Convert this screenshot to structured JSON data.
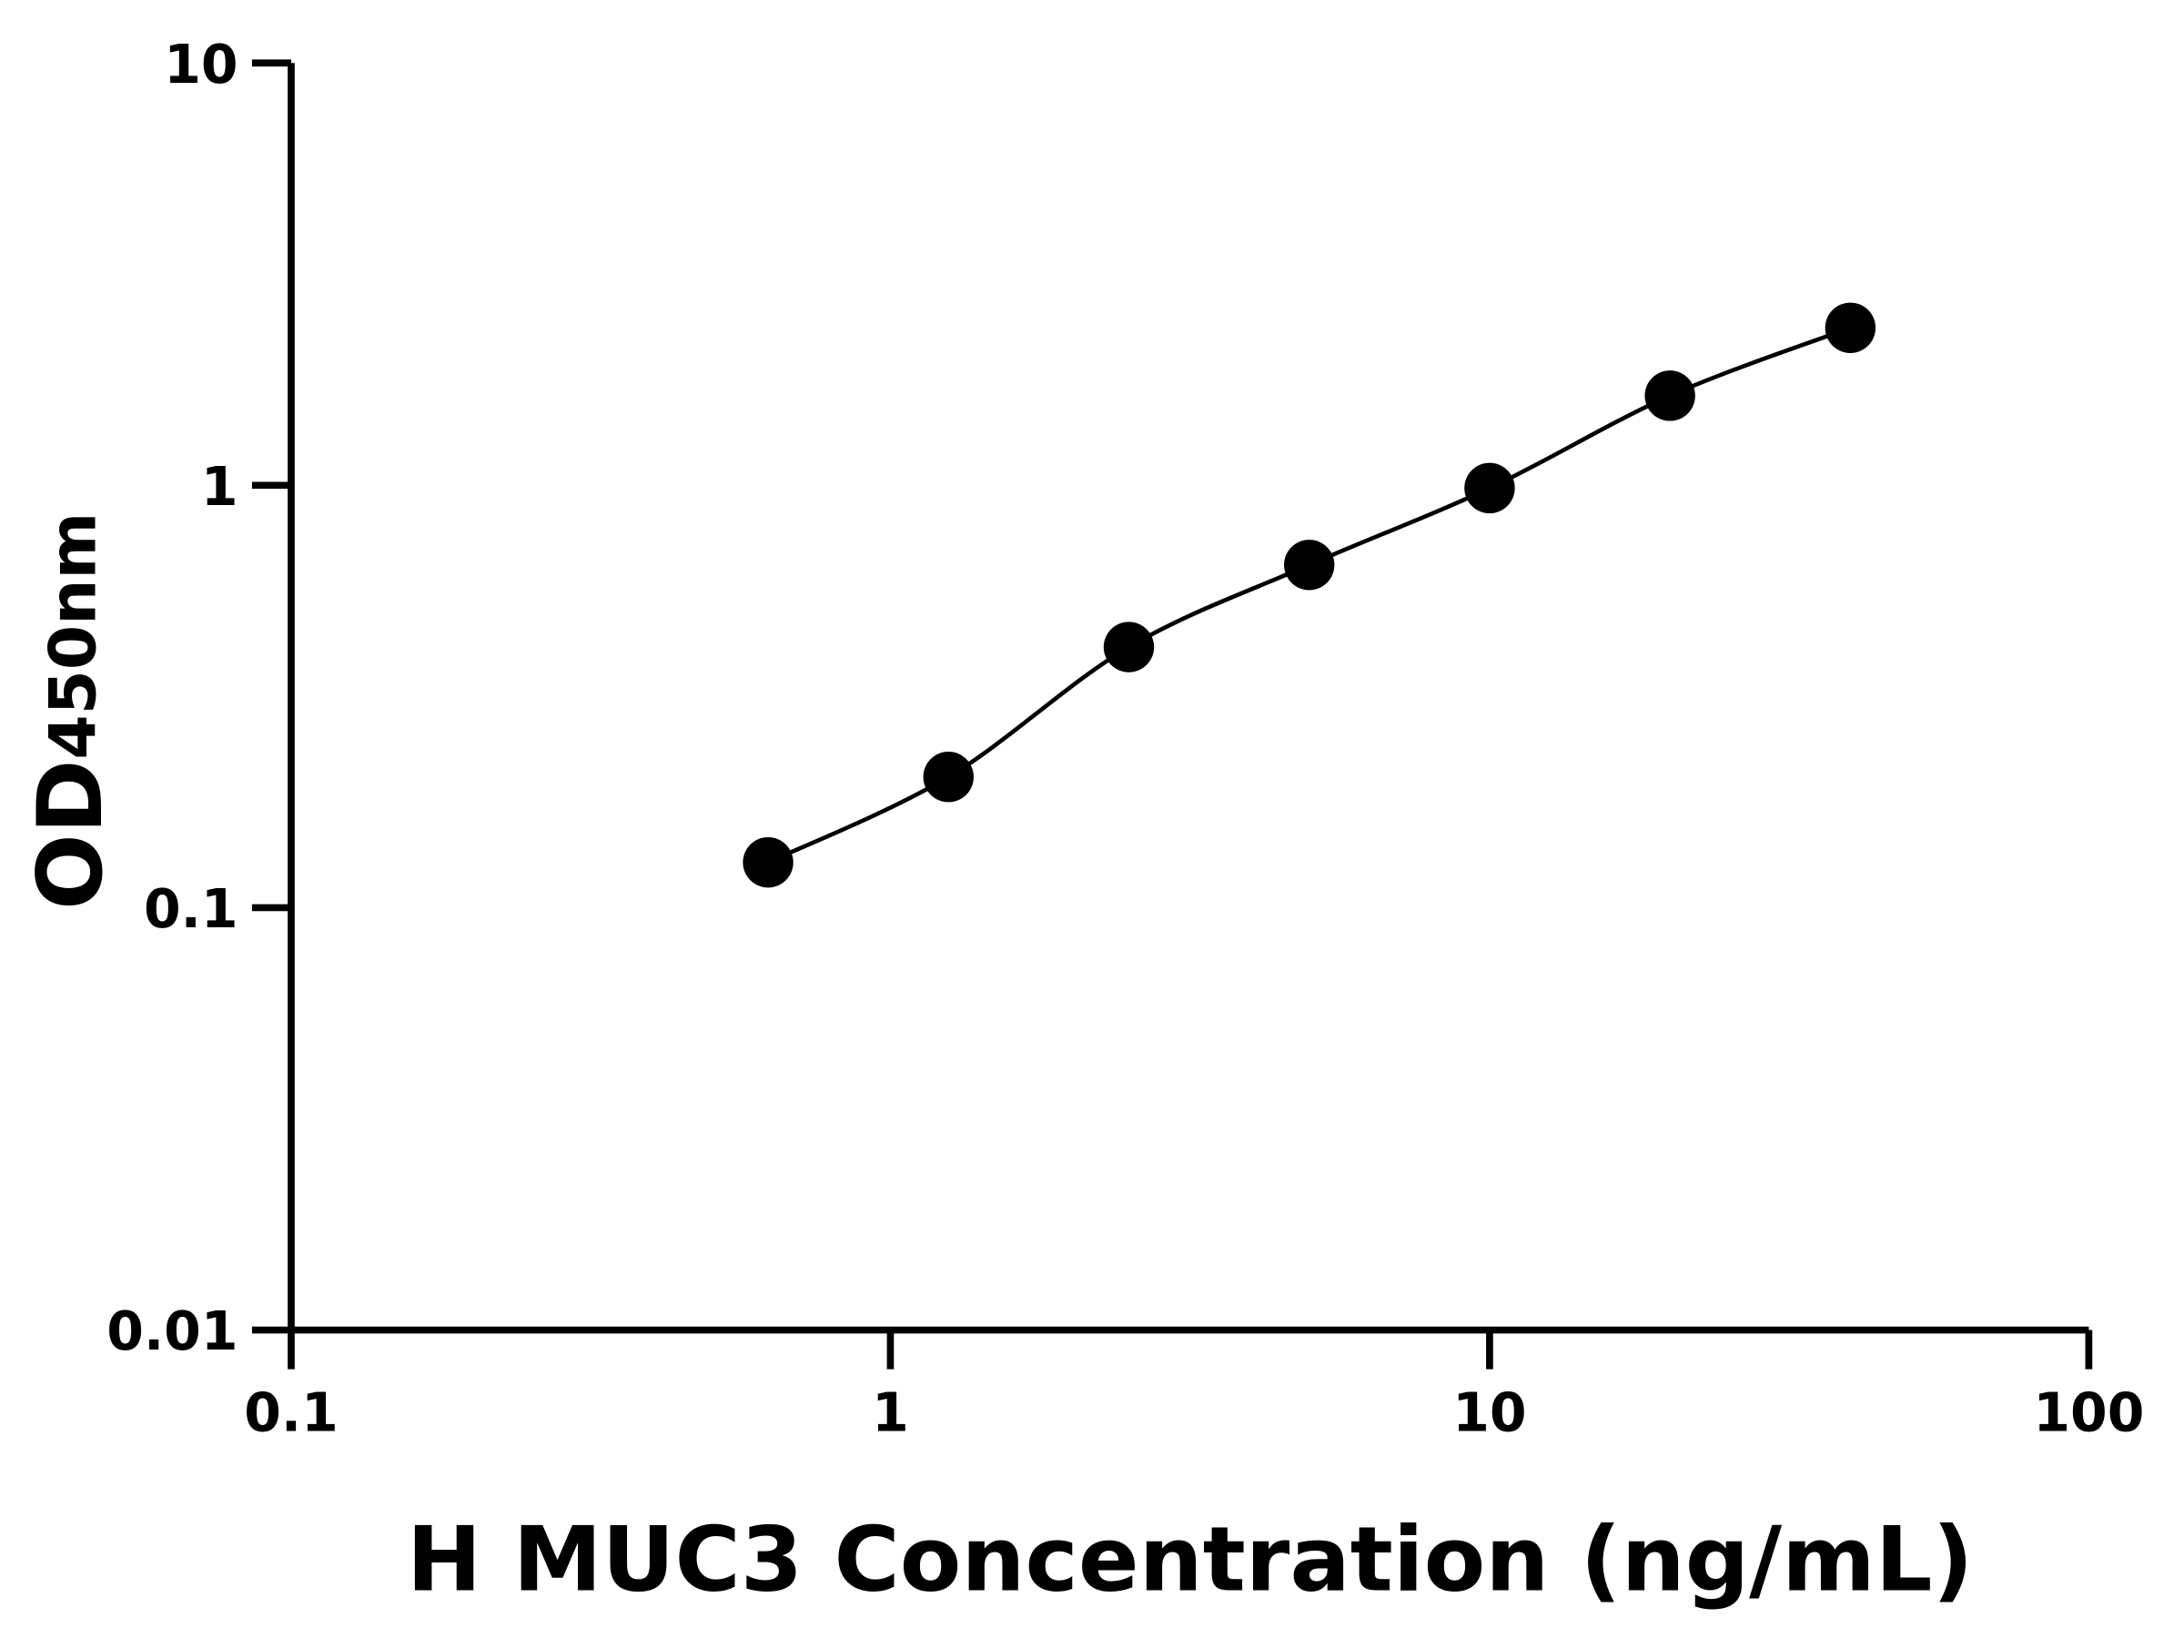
{
  "chart_data": {
    "type": "line",
    "title": "",
    "xlabel": "H MUC3 Concentration (ng/mL)",
    "ylabel_main": "OD",
    "ylabel_sub": "450nm",
    "xscale": "log",
    "yscale": "log",
    "xlim": [
      0.1,
      100
    ],
    "ylim": [
      0.01,
      10
    ],
    "xticks": [
      "0.1",
      "1",
      "10",
      "100"
    ],
    "yticks": [
      "0.01",
      "0.1",
      "1",
      "10"
    ],
    "grid": false,
    "legend": "none",
    "series": [
      {
        "x": [
          0.625,
          1.25,
          2.5,
          5,
          10,
          20,
          40
        ],
        "y": [
          0.128,
          0.204,
          0.414,
          0.648,
          0.985,
          1.63,
          2.36
        ],
        "marker": "circle",
        "color": "#000000"
      }
    ]
  }
}
